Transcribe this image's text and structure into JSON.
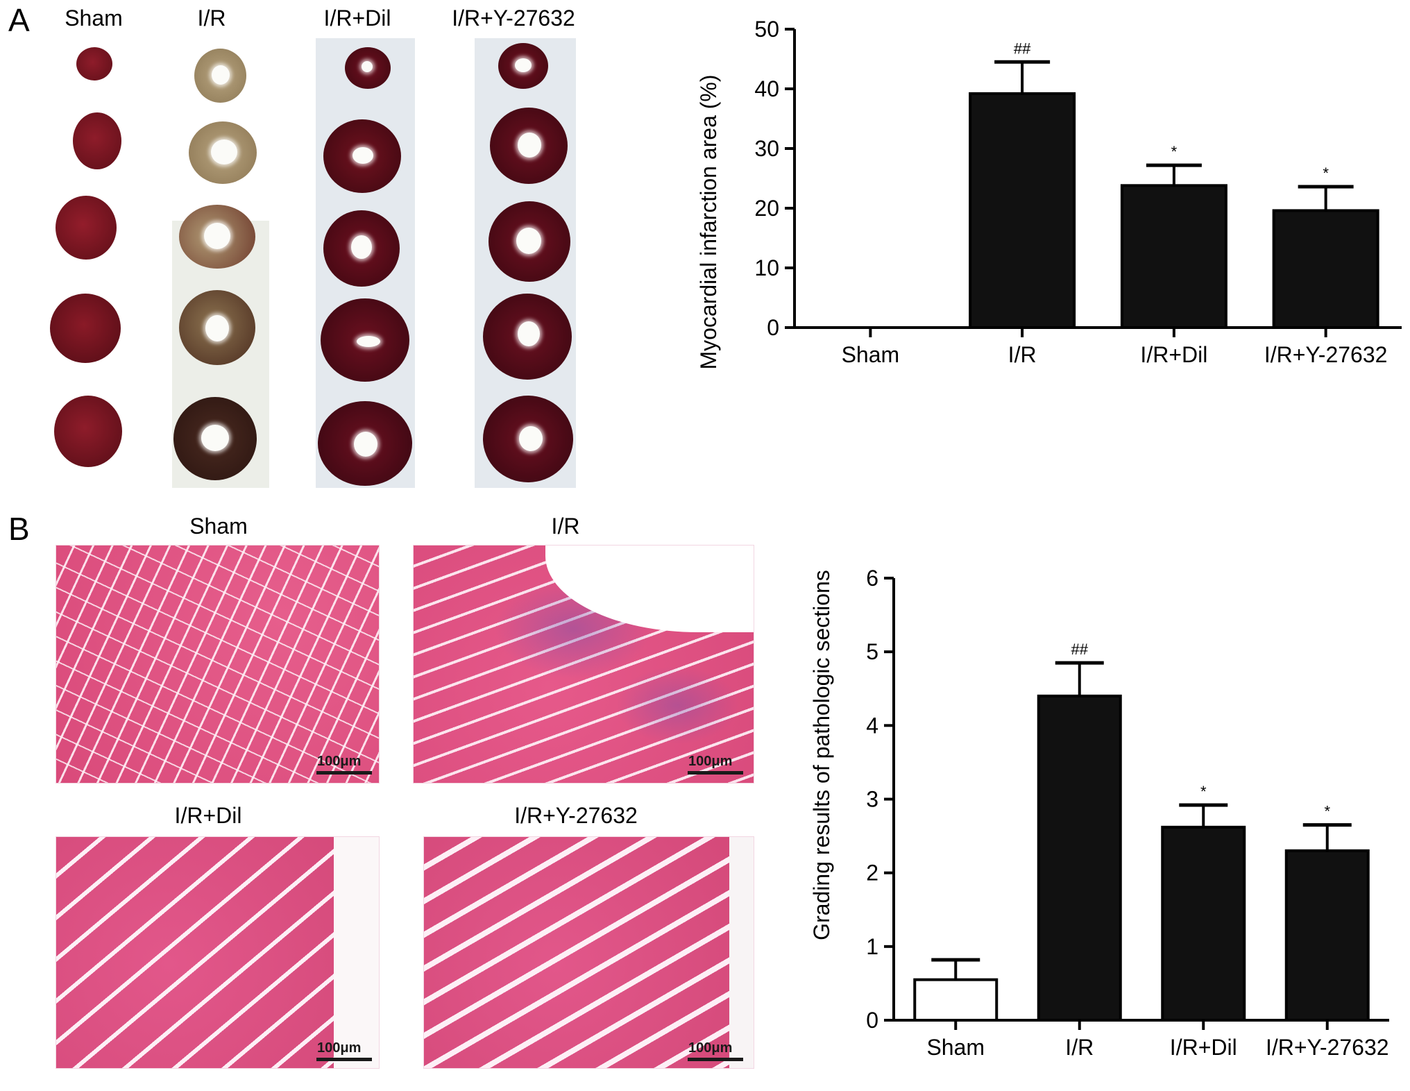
{
  "panel_a": {
    "letter": "A",
    "image_labels": [
      "Sham",
      "I/R",
      "I/R+Dil",
      "I/R+Y-27632"
    ]
  },
  "panel_b": {
    "letter": "B",
    "image_labels": [
      "Sham",
      "I/R",
      "I/R+Dil",
      "I/R+Y-27632"
    ],
    "scale_bar": "100μm"
  },
  "colors": {
    "sham_tissue": "#7a1620",
    "ir_pale": "#c9b89a",
    "he_stain": "#e0517f",
    "bar_fill": "#111111",
    "sham_bar_fill": "#ffffff"
  },
  "chart_data": [
    {
      "type": "bar",
      "title": "",
      "xlabel": "",
      "ylabel": "Myocardial infarction area (%)",
      "categories": [
        "Sham",
        "I/R",
        "I/R+Dil",
        "I/R+Y-27632"
      ],
      "values": [
        0,
        39.2,
        23.8,
        19.6
      ],
      "errors": [
        0,
        5.3,
        3.4,
        4.0
      ],
      "annotations": [
        "",
        "##",
        "*",
        "*"
      ],
      "ylim": [
        0,
        50
      ],
      "yticks": [
        0,
        10,
        20,
        30,
        40,
        50
      ],
      "grid": false
    },
    {
      "type": "bar",
      "title": "",
      "xlabel": "",
      "ylabel": "Grading results of pathologic sections",
      "categories": [
        "Sham",
        "I/R",
        "I/R+Dil",
        "I/R+Y-27632"
      ],
      "values": [
        0.55,
        4.4,
        2.62,
        2.3
      ],
      "errors": [
        0.27,
        0.45,
        0.3,
        0.35
      ],
      "annotations": [
        "",
        "##",
        "*",
        "*"
      ],
      "ylim": [
        0,
        6
      ],
      "yticks": [
        0,
        1,
        2,
        3,
        4,
        5,
        6
      ],
      "grid": false
    }
  ]
}
